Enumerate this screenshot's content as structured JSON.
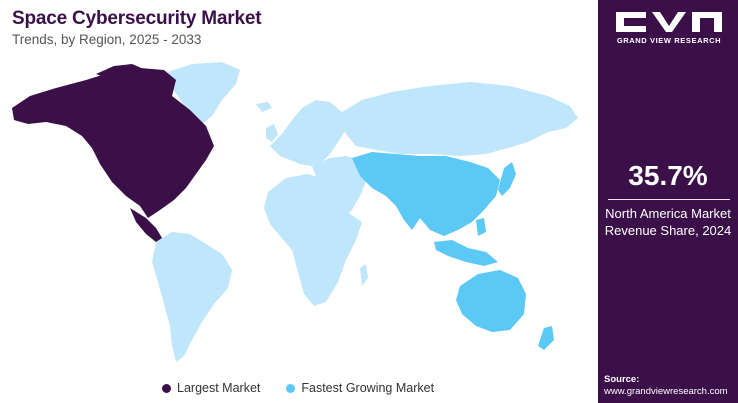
{
  "header": {
    "title": "Space Cybersecurity Market",
    "subtitle": "Trends, by Region, 2025 - 2033"
  },
  "legend": {
    "items": [
      {
        "label": "Largest Market",
        "color": "#3b1049"
      },
      {
        "label": "Fastest Growing Market",
        "color": "#5bc8f5"
      }
    ]
  },
  "map": {
    "base_color": "#bfe6fa",
    "largest_market_region": "North America",
    "fastest_growing_region": "Asia Pacific"
  },
  "sidebar": {
    "background": "#3b1049",
    "logo_text": "GRAND VIEW RESEARCH",
    "stat_value": "35.7%",
    "stat_label_line1": "North America Market",
    "stat_label_line2": "Revenue Share, 2024",
    "source_label": "Source:",
    "source_url": "www.grandviewresearch.com"
  }
}
